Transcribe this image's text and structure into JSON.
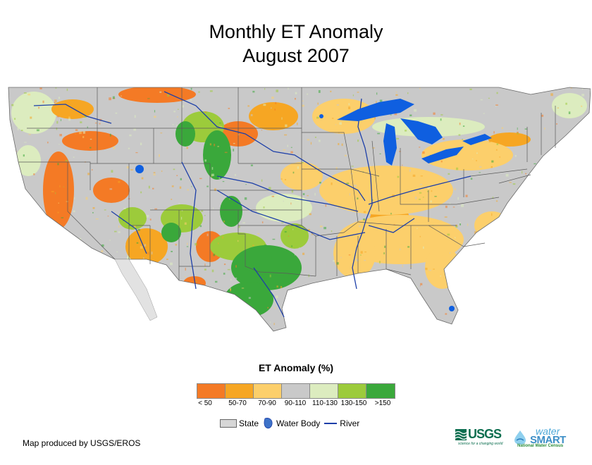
{
  "title": {
    "line1": "Monthly ET Anomaly",
    "line2": "August 2007"
  },
  "legend": {
    "title": "ET Anomaly (%)",
    "classes": [
      {
        "label": "< 50",
        "color": "#f47a25"
      },
      {
        "label": "50-70",
        "color": "#f6a623"
      },
      {
        "label": "70-90",
        "color": "#fccf6b"
      },
      {
        "label": "90-110",
        "color": "#c9c9c9"
      },
      {
        "label": "110-130",
        "color": "#dcecbf"
      },
      {
        "label": "130-150",
        "color": "#9ccb3b"
      },
      {
        "label": ">150",
        "color": "#3aa83b"
      }
    ],
    "reference": {
      "state": "State",
      "water_body": "Water Body",
      "river": "River"
    }
  },
  "colors": {
    "water": "#0f5fe0",
    "river": "#1d3fa8",
    "state_line": "#5a5a5a",
    "no_data": "#ffffff"
  },
  "credit": "Map produced by USGS/EROS",
  "logos": {
    "usgs": {
      "name": "USGS",
      "tagline": "science for a changing world"
    },
    "watersmart": {
      "word1": "water",
      "word2": "SMART",
      "tagline": "National Water Census"
    }
  }
}
